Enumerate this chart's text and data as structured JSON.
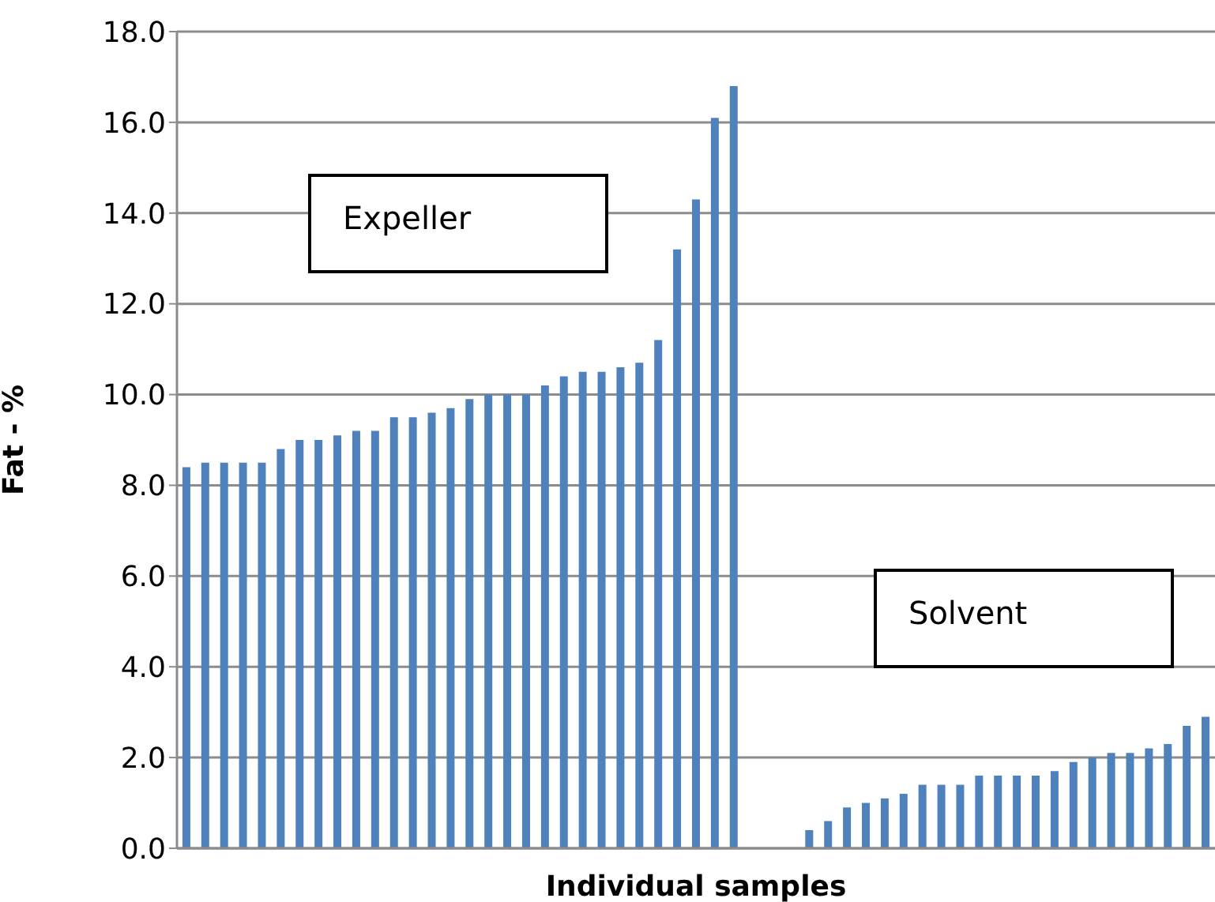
{
  "chart_data": {
    "type": "bar",
    "ylabel": "Fat - %",
    "xlabel": "Individual samples",
    "categories": [
      null,
      null,
      null,
      null,
      null,
      null,
      null,
      null,
      null,
      null,
      null,
      null,
      null,
      null,
      null,
      null,
      null,
      null,
      null,
      null,
      null,
      null,
      null,
      null,
      null,
      null,
      null,
      null,
      null,
      null,
      null,
      null,
      null,
      null,
      null,
      null,
      null,
      null,
      null,
      null,
      null,
      null,
      null,
      null,
      null,
      null,
      null,
      null,
      null,
      null,
      null,
      null,
      null,
      null,
      null
    ],
    "values": [
      8.4,
      8.5,
      8.5,
      8.5,
      8.5,
      8.8,
      9.0,
      9.0,
      9.1,
      9.2,
      9.2,
      9.5,
      9.5,
      9.6,
      9.7,
      9.9,
      10.0,
      10.0,
      10.0,
      10.2,
      10.4,
      10.5,
      10.5,
      10.6,
      10.7,
      11.2,
      13.2,
      14.3,
      16.1,
      16.8,
      null,
      null,
      null,
      0.4,
      0.6,
      0.9,
      1.0,
      1.1,
      1.2,
      1.4,
      1.4,
      1.4,
      1.6,
      1.6,
      1.6,
      1.6,
      1.7,
      1.9,
      2.0,
      2.1,
      2.1,
      2.2,
      2.3,
      2.7,
      2.9
    ],
    "color": "#4f81bd",
    "ylim": [
      0,
      18
    ],
    "yticks": [
      {
        "value": 0,
        "label": "0.0"
      },
      {
        "value": 2,
        "label": "2.0"
      },
      {
        "value": 4,
        "label": "4.0"
      },
      {
        "value": 6,
        "label": "6.0"
      },
      {
        "value": 8,
        "label": "8.0"
      },
      {
        "value": 10,
        "label": "10.0"
      },
      {
        "value": 12,
        "label": "12.0"
      },
      {
        "value": 14,
        "label": "14.0"
      },
      {
        "value": 16,
        "label": "16.0"
      },
      {
        "value": 18,
        "label": "18.0"
      }
    ],
    "grid": "y",
    "legend": false,
    "annotations": [
      "Expeller",
      "Solvent"
    ]
  }
}
